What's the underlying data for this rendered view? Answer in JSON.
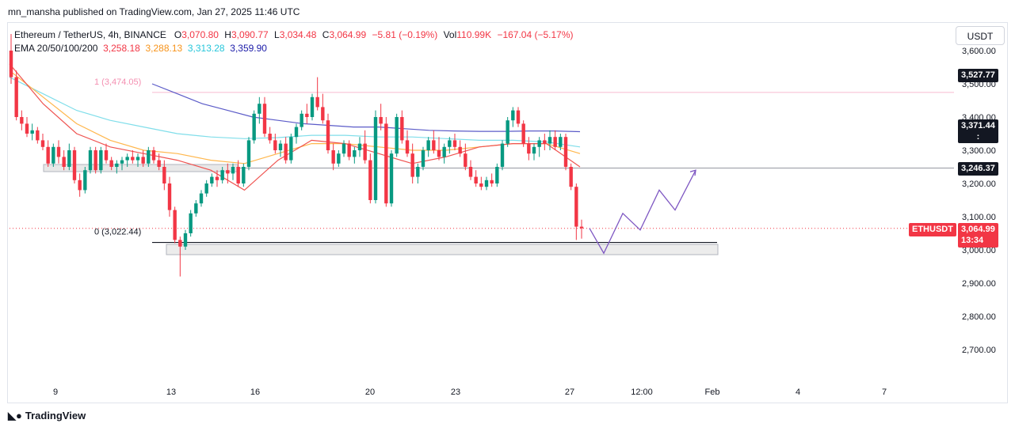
{
  "header": {
    "published": "mn_mansha published on TradingView.com, Jan 27, 2025 11:46 UTC"
  },
  "legend": {
    "symbol": "Ethereum / TetherUS, 4h, BINANCE",
    "o_label": "O",
    "o": "3,070.80",
    "h_label": "H",
    "h": "3,090.77",
    "l_label": "L",
    "l": "3,034.48",
    "c_label": "C",
    "c": "3,064.99",
    "change": "−5.81 (−0.19%)",
    "vol_label": "Vol",
    "vol": "110.99K",
    "vol_change": "−167.04 (−5.17%)",
    "ema_label": "EMA 20/50/100/200",
    "ema20": "3,258.18",
    "ema50": "3,288.13",
    "ema100": "3,313.28",
    "ema200": "3,359.90"
  },
  "currency_button": "USDT",
  "price_tags": {
    "p1": "3,527.77",
    "p2": "3,371.44",
    "p2_sub": ":",
    "p3": "3,246.37",
    "current_symbol": "ETHUSDT",
    "current_price": "3,064.99",
    "countdown": "13:34"
  },
  "fib": {
    "level1": "1 (3,474.05)",
    "level0": "0 (3,022.44)"
  },
  "footer": {
    "brand": "TradingView"
  },
  "colors": {
    "up": "#089981",
    "down": "#f23645",
    "ema20": "#f23645",
    "ema50": "#f7931a",
    "ema100": "#26c6da",
    "ema200": "#5b5bc8",
    "projection": "#7e57c2"
  },
  "chart_data": {
    "type": "candlestick",
    "x_ticks": [
      "9",
      "13",
      "16",
      "20",
      "23",
      "27",
      "12:00",
      "Feb",
      "4",
      "7"
    ],
    "y_ticks": [
      "3,600.00",
      "3,500.00",
      "3,400.00",
      "3,300.00",
      "3,200.00",
      "3,100.00",
      "3,000.00",
      "2,900.00",
      "2,800.00",
      "2,700.00"
    ],
    "ylim": [
      2620,
      3660
    ],
    "candles": [
      [
        3600,
        3650,
        3500,
        3520
      ],
      [
        3520,
        3540,
        3390,
        3400
      ],
      [
        3400,
        3420,
        3360,
        3380
      ],
      [
        3380,
        3400,
        3340,
        3350
      ],
      [
        3350,
        3380,
        3330,
        3360
      ],
      [
        3360,
        3370,
        3320,
        3330
      ],
      [
        3330,
        3350,
        3300,
        3310
      ],
      [
        3310,
        3330,
        3250,
        3260
      ],
      [
        3260,
        3320,
        3250,
        3310
      ],
      [
        3310,
        3330,
        3260,
        3280
      ],
      [
        3280,
        3300,
        3240,
        3250
      ],
      [
        3250,
        3320,
        3240,
        3300
      ],
      [
        3300,
        3310,
        3200,
        3210
      ],
      [
        3210,
        3230,
        3160,
        3180
      ],
      [
        3180,
        3250,
        3170,
        3240
      ],
      [
        3240,
        3310,
        3230,
        3300
      ],
      [
        3300,
        3310,
        3230,
        3240
      ],
      [
        3240,
        3310,
        3230,
        3300
      ],
      [
        3300,
        3320,
        3260,
        3270
      ],
      [
        3270,
        3280,
        3240,
        3250
      ],
      [
        3250,
        3270,
        3230,
        3260
      ],
      [
        3260,
        3280,
        3240,
        3270
      ],
      [
        3270,
        3290,
        3250,
        3280
      ],
      [
        3280,
        3300,
        3260,
        3270
      ],
      [
        3270,
        3290,
        3250,
        3280
      ],
      [
        3280,
        3300,
        3250,
        3260
      ],
      [
        3260,
        3310,
        3250,
        3300
      ],
      [
        3300,
        3310,
        3260,
        3270
      ],
      [
        3270,
        3290,
        3240,
        3250
      ],
      [
        3250,
        3270,
        3180,
        3200
      ],
      [
        3200,
        3220,
        3100,
        3120
      ],
      [
        3120,
        3130,
        3020,
        3030
      ],
      [
        3030,
        3040,
        2920,
        3010
      ],
      [
        3010,
        3060,
        3000,
        3050
      ],
      [
        3050,
        3120,
        3040,
        3110
      ],
      [
        3110,
        3150,
        3100,
        3140
      ],
      [
        3140,
        3180,
        3130,
        3170
      ],
      [
        3170,
        3210,
        3160,
        3200
      ],
      [
        3200,
        3230,
        3190,
        3220
      ],
      [
        3220,
        3240,
        3190,
        3210
      ],
      [
        3210,
        3250,
        3200,
        3240
      ],
      [
        3240,
        3260,
        3200,
        3230
      ],
      [
        3230,
        3260,
        3210,
        3250
      ],
      [
        3250,
        3270,
        3190,
        3200
      ],
      [
        3200,
        3260,
        3190,
        3250
      ],
      [
        3250,
        3340,
        3240,
        3330
      ],
      [
        3330,
        3420,
        3320,
        3410
      ],
      [
        3410,
        3460,
        3380,
        3440
      ],
      [
        3440,
        3460,
        3340,
        3350
      ],
      [
        3350,
        3370,
        3320,
        3330
      ],
      [
        3330,
        3350,
        3290,
        3300
      ],
      [
        3300,
        3330,
        3280,
        3320
      ],
      [
        3320,
        3340,
        3260,
        3270
      ],
      [
        3270,
        3350,
        3260,
        3340
      ],
      [
        3340,
        3380,
        3320,
        3370
      ],
      [
        3370,
        3420,
        3360,
        3410
      ],
      [
        3410,
        3440,
        3380,
        3400
      ],
      [
        3400,
        3470,
        3390,
        3460
      ],
      [
        3460,
        3520,
        3420,
        3430
      ],
      [
        3430,
        3470,
        3380,
        3390
      ],
      [
        3390,
        3410,
        3290,
        3300
      ],
      [
        3300,
        3320,
        3240,
        3260
      ],
      [
        3260,
        3300,
        3250,
        3290
      ],
      [
        3290,
        3330,
        3280,
        3320
      ],
      [
        3320,
        3330,
        3270,
        3280
      ],
      [
        3280,
        3310,
        3260,
        3300
      ],
      [
        3300,
        3340,
        3280,
        3320
      ],
      [
        3320,
        3360,
        3260,
        3270
      ],
      [
        3270,
        3290,
        3140,
        3150
      ],
      [
        3150,
        3420,
        3140,
        3400
      ],
      [
        3400,
        3440,
        3360,
        3380
      ],
      [
        3380,
        3400,
        3130,
        3140
      ],
      [
        3140,
        3300,
        3130,
        3290
      ],
      [
        3290,
        3410,
        3280,
        3400
      ],
      [
        3400,
        3420,
        3320,
        3330
      ],
      [
        3330,
        3360,
        3280,
        3290
      ],
      [
        3290,
        3320,
        3200,
        3220
      ],
      [
        3220,
        3260,
        3200,
        3250
      ],
      [
        3250,
        3310,
        3240,
        3300
      ],
      [
        3300,
        3340,
        3280,
        3330
      ],
      [
        3330,
        3360,
        3290,
        3300
      ],
      [
        3300,
        3340,
        3270,
        3280
      ],
      [
        3280,
        3320,
        3260,
        3310
      ],
      [
        3310,
        3340,
        3290,
        3330
      ],
      [
        3330,
        3350,
        3300,
        3310
      ],
      [
        3310,
        3330,
        3280,
        3290
      ],
      [
        3290,
        3320,
        3240,
        3250
      ],
      [
        3250,
        3270,
        3210,
        3220
      ],
      [
        3220,
        3240,
        3190,
        3200
      ],
      [
        3200,
        3220,
        3180,
        3190
      ],
      [
        3190,
        3220,
        3180,
        3210
      ],
      [
        3210,
        3230,
        3190,
        3200
      ],
      [
        3200,
        3260,
        3190,
        3250
      ],
      [
        3250,
        3330,
        3240,
        3320
      ],
      [
        3320,
        3400,
        3310,
        3390
      ],
      [
        3390,
        3430,
        3370,
        3420
      ],
      [
        3420,
        3430,
        3370,
        3380
      ],
      [
        3380,
        3390,
        3310,
        3320
      ],
      [
        3320,
        3340,
        3270,
        3290
      ],
      [
        3290,
        3320,
        3270,
        3310
      ],
      [
        3310,
        3340,
        3280,
        3330
      ],
      [
        3330,
        3350,
        3300,
        3320
      ],
      [
        3320,
        3360,
        3300,
        3340
      ],
      [
        3340,
        3360,
        3300,
        3310
      ],
      [
        3310,
        3350,
        3300,
        3340
      ],
      [
        3340,
        3350,
        3240,
        3250
      ],
      [
        3250,
        3260,
        3180,
        3190
      ],
      [
        3190,
        3200,
        3030,
        3070
      ],
      [
        3070,
        3091,
        3034,
        3065
      ]
    ],
    "ema200": [
      3500,
      3470,
      3440,
      3420,
      3400,
      3390,
      3380,
      3375,
      3370,
      3370,
      3365,
      3360,
      3358,
      3357,
      3357,
      3358,
      3358,
      3356
    ],
    "ema100": [
      3520,
      3470,
      3420,
      3390,
      3370,
      3350,
      3340,
      3335,
      3338,
      3345,
      3345,
      3340,
      3340,
      3335,
      3330,
      3330,
      3325,
      3310
    ],
    "ema50": [
      3540,
      3460,
      3380,
      3330,
      3300,
      3290,
      3270,
      3260,
      3290,
      3320,
      3320,
      3310,
      3300,
      3300,
      3310,
      3320,
      3320,
      3290
    ],
    "ema20": [
      3560,
      3440,
      3350,
      3310,
      3290,
      3270,
      3240,
      3180,
      3270,
      3330,
      3320,
      3290,
      3260,
      3280,
      3310,
      3320,
      3320,
      3250
    ],
    "projection": [
      3065,
      2990,
      3110,
      3060,
      3180,
      3120,
      3240
    ],
    "hline_fib1": 3474.05,
    "hline_fib0": 3022.44,
    "hline_res": 3246.37,
    "current": 3064.99
  }
}
